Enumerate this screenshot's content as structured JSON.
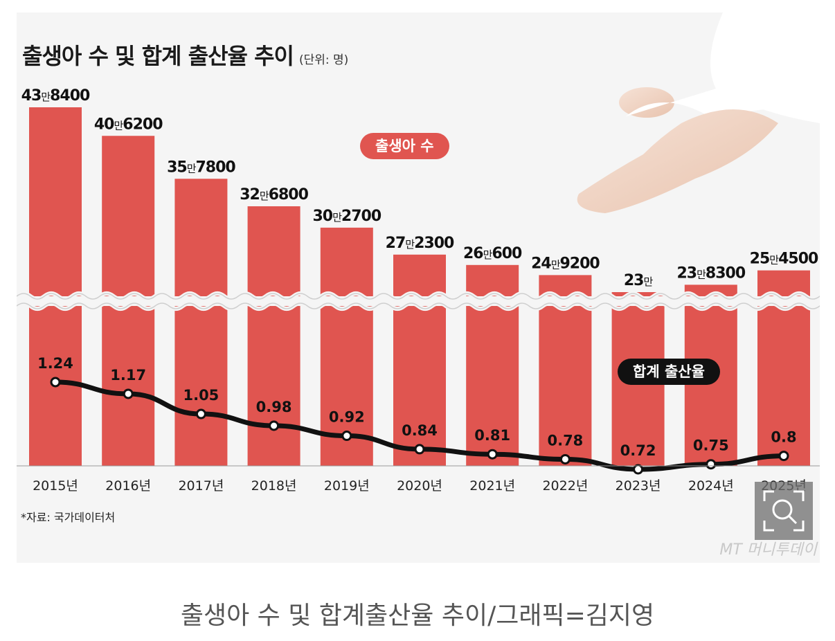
{
  "title": "출생아 수 및 합계 출산율 추이",
  "unit_label": "(단위: 명)",
  "series_labels": {
    "births": "출생아 수",
    "fertility": "합계 출산율"
  },
  "source": "*자료: 국가데이터처",
  "watermark": "MT 머니투데이",
  "caption": "출생아 수 및 합계출산율 추이/그래픽=김지영",
  "icons": {
    "zoom": "zoom-icon",
    "photo": "baby-feet-photo"
  },
  "colors": {
    "bar": "#e05550",
    "line": "#111111",
    "background": "#f5f5f5",
    "pill_births": "#e05550",
    "pill_fertility": "#111111"
  },
  "chart_data": {
    "type": "bar+line",
    "categories": [
      "2015년",
      "2016년",
      "2017년",
      "2018년",
      "2019년",
      "2020년",
      "2021년",
      "2022년",
      "2023년",
      "2024년",
      "2025년"
    ],
    "series": [
      {
        "name": "출생아 수",
        "type": "bar",
        "values": [
          438400,
          406200,
          357800,
          326800,
          302700,
          272300,
          260600,
          249200,
          230000,
          238300,
          254500
        ],
        "labels": [
          [
            "43",
            "8400"
          ],
          [
            "40",
            "6200"
          ],
          [
            "35",
            "7800"
          ],
          [
            "32",
            "6800"
          ],
          [
            "30",
            "2700"
          ],
          [
            "27",
            "2300"
          ],
          [
            "26",
            "600"
          ],
          [
            "24",
            "9200"
          ],
          [
            "23",
            ""
          ],
          [
            "23",
            "8300"
          ],
          [
            "25",
            "4500"
          ]
        ],
        "label_man_char": "만"
      },
      {
        "name": "합계 출산율",
        "type": "line",
        "values": [
          1.24,
          1.17,
          1.05,
          0.98,
          0.92,
          0.84,
          0.81,
          0.78,
          0.72,
          0.75,
          0.8
        ],
        "labels": [
          "1.24",
          "1.17",
          "1.05",
          "0.98",
          "0.92",
          "0.84",
          "0.81",
          "0.78",
          "0.72",
          "0.75",
          "0.8"
        ]
      }
    ],
    "axis_break": true,
    "grid": false,
    "legend": "inline-pills"
  }
}
